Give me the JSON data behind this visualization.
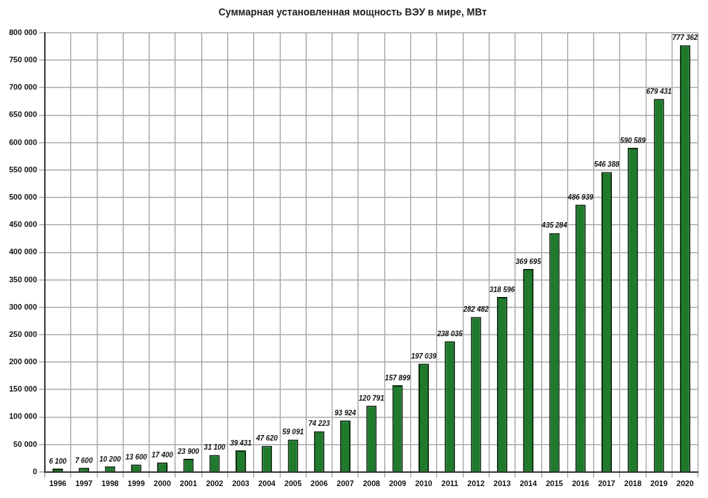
{
  "chart_data": {
    "type": "bar",
    "title": "Суммарная установленная мощность ВЭУ в мире, МВт",
    "categories": [
      "1996",
      "1997",
      "1998",
      "1999",
      "2000",
      "2001",
      "2002",
      "2003",
      "2004",
      "2005",
      "2006",
      "2007",
      "2008",
      "2009",
      "2010",
      "2011",
      "2012",
      "2013",
      "2014",
      "2015",
      "2016",
      "2017",
      "2018",
      "2019",
      "2020"
    ],
    "values": [
      6100,
      7600,
      10200,
      13600,
      17400,
      23900,
      31100,
      39431,
      47620,
      59091,
      74223,
      93924,
      120791,
      157899,
      197039,
      238035,
      282482,
      318596,
      369695,
      435284,
      486939,
      546388,
      590589,
      679431,
      777362
    ],
    "value_labels": [
      "6 100",
      "7 600",
      "10 200",
      "13 600",
      "17 400",
      "23 900",
      "31 100",
      "39 431",
      "47 620",
      "59 091",
      "74 223",
      "93 924",
      "120 791",
      "157 899",
      "197 039",
      "238 035",
      "282 482",
      "318 596",
      "369 695",
      "435 284",
      "486 939",
      "546 388",
      "590 589",
      "679 431",
      "777 362"
    ],
    "color": "#1f7a2c",
    "ylim": [
      0,
      800000
    ],
    "yticks": [
      {
        "value": 0,
        "label": "0"
      },
      {
        "value": 50000,
        "label": "50 000"
      },
      {
        "value": 100000,
        "label": "100 000"
      },
      {
        "value": 150000,
        "label": "150 000"
      },
      {
        "value": 200000,
        "label": "200 000"
      },
      {
        "value": 250000,
        "label": "250 000"
      },
      {
        "value": 300000,
        "label": "300 000"
      },
      {
        "value": 350000,
        "label": "350 000"
      },
      {
        "value": 400000,
        "label": "400 000"
      },
      {
        "value": 450000,
        "label": "450 000"
      },
      {
        "value": 500000,
        "label": "500 000"
      },
      {
        "value": 550000,
        "label": "550 000"
      },
      {
        "value": 600000,
        "label": "600 000"
      },
      {
        "value": 650000,
        "label": "650 000"
      },
      {
        "value": 700000,
        "label": "700 000"
      },
      {
        "value": 750000,
        "label": "750 000"
      },
      {
        "value": 800000,
        "label": "800 000"
      }
    ],
    "grid": true,
    "legend": false
  }
}
